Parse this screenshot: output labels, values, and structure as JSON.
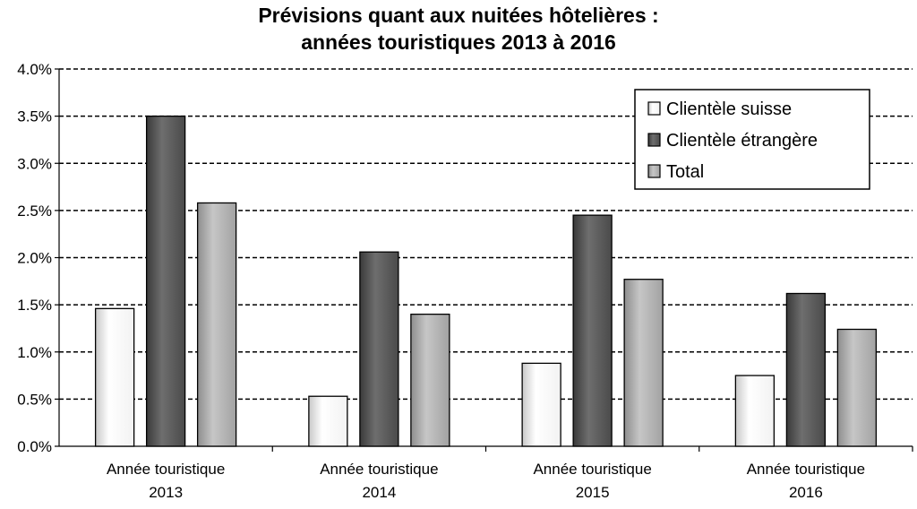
{
  "chart_data": {
    "type": "bar",
    "title_line1": "Prévisions quant aux nuitées hôtelières :",
    "title_line2": "années touristiques 2013 à 2016",
    "xlabel": "",
    "ylabel": "",
    "ylim": [
      0,
      4.0
    ],
    "ytick_step": 0.5,
    "y_tick_labels": [
      "0.0%",
      "0.5%",
      "1.0%",
      "1.5%",
      "2.0%",
      "2.5%",
      "3.0%",
      "3.5%",
      "4.0%"
    ],
    "grid": true,
    "grid_style": "dashed",
    "legend_position": "top-right",
    "categories": [
      [
        "Année touristique",
        "2013"
      ],
      [
        "Année touristique",
        "2014"
      ],
      [
        "Année touristique",
        "2015"
      ],
      [
        "Année touristique",
        "2016"
      ]
    ],
    "series": [
      {
        "name": "Clientèle suisse",
        "values": [
          1.46,
          0.53,
          0.88,
          0.75
        ],
        "fill": "white-gradient"
      },
      {
        "name": "Clientèle étrangère",
        "values": [
          3.5,
          2.06,
          2.45,
          1.62
        ],
        "fill": "dark-gradient"
      },
      {
        "name": "Total",
        "values": [
          2.58,
          1.4,
          1.77,
          1.24
        ],
        "fill": "medium-gradient"
      }
    ]
  }
}
